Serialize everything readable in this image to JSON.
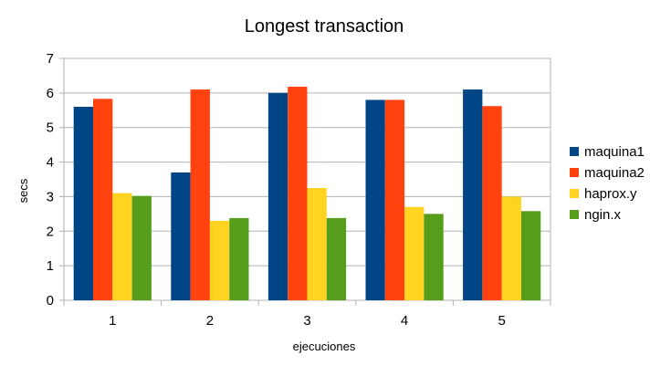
{
  "chart_data": {
    "type": "bar",
    "title": "Longest transaction",
    "xlabel": "ejecuciones",
    "ylabel": "secs",
    "categories": [
      "1",
      "2",
      "3",
      "4",
      "5"
    ],
    "ylim": [
      0,
      7
    ],
    "yticks": [
      "0",
      "1",
      "2",
      "3",
      "4",
      "5",
      "6",
      "7"
    ],
    "grid": true,
    "legend_position": "right",
    "series": [
      {
        "name": "maquina1",
        "color": "#004586",
        "values": [
          5.6,
          3.7,
          6.0,
          5.8,
          6.1
        ]
      },
      {
        "name": "maquina2",
        "color": "#ff420e",
        "values": [
          5.83,
          6.1,
          6.18,
          5.8,
          5.62
        ]
      },
      {
        "name": "haprox.y",
        "color": "#ffd320",
        "values": [
          3.1,
          2.3,
          3.25,
          2.7,
          3.0
        ]
      },
      {
        "name": "ngin.x",
        "color": "#579d1c",
        "values": [
          3.02,
          2.38,
          2.38,
          2.5,
          2.58
        ]
      }
    ]
  }
}
